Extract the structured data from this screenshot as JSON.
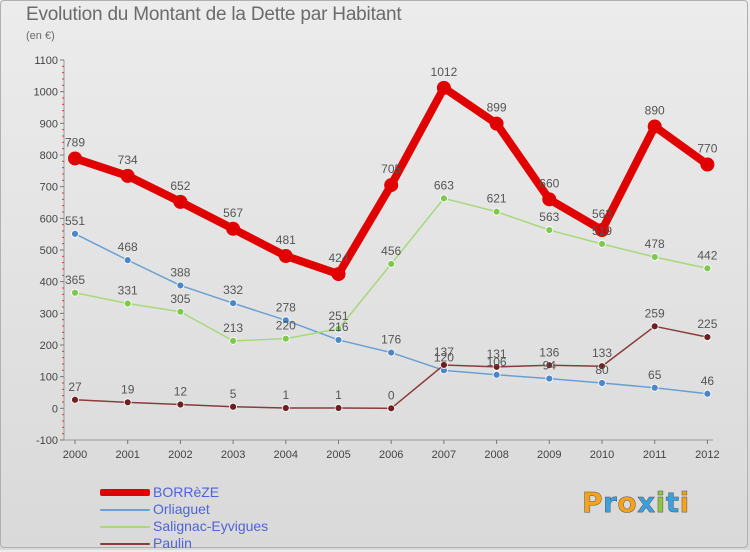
{
  "title": "Evolution du Montant de la Dette par Habitant",
  "subtitle": "(en €)",
  "logo": {
    "text": "Proxiti",
    "letters": [
      {
        "ch": "P",
        "color": "#f7a21b"
      },
      {
        "ch": "r",
        "color": "#3aa0e0"
      },
      {
        "ch": "o",
        "color": "#f7a21b"
      },
      {
        "ch": "x",
        "color": "#3aa0e0"
      },
      {
        "ch": "i",
        "color": "#8ec63f"
      },
      {
        "ch": "t",
        "color": "#3aa0e0"
      },
      {
        "ch": "i",
        "color": "#f7a21b"
      }
    ]
  },
  "chart_data": {
    "type": "line",
    "title": "Evolution du Montant de la Dette par Habitant",
    "subtitle": "(en €)",
    "x": [
      "2000",
      "2001",
      "2002",
      "2003",
      "2004",
      "2005",
      "2006",
      "2007",
      "2008",
      "2009",
      "2010",
      "2011",
      "2012"
    ],
    "y_ticks": [
      -100,
      0,
      100,
      200,
      300,
      400,
      500,
      600,
      700,
      800,
      900,
      1000,
      1100
    ],
    "ylim": [
      -100,
      1100
    ],
    "grid": false,
    "legend_position": "bottom-left",
    "series": [
      {
        "name": "BORRèZE",
        "color": "#e00000",
        "marker_color": "#e00000",
        "width": 8,
        "marker_r": 7,
        "values": [
          789,
          734,
          652,
          567,
          481,
          424,
          705,
          1012,
          899,
          660,
          563,
          890,
          770
        ],
        "labels": [
          "789",
          "734",
          "652",
          "567",
          "481",
          "424",
          "705",
          "1012",
          "899",
          "660",
          "563",
          "890",
          "770"
        ]
      },
      {
        "name": "Orliaguet",
        "color": "#6a9fd4",
        "marker_color": "#4a86c8",
        "width": 1.5,
        "marker_r": 3.5,
        "values": [
          551,
          468,
          388,
          332,
          278,
          216,
          176,
          120,
          106,
          94,
          80,
          65,
          46
        ],
        "labels": [
          "551",
          "468",
          "388",
          "332",
          "278",
          "216",
          "176",
          "120",
          "106",
          "94",
          "80",
          "65",
          "46"
        ]
      },
      {
        "name": "Salignac-Eyvigues",
        "color": "#a6d97a",
        "marker_color": "#7ec850",
        "width": 1.5,
        "marker_r": 3.5,
        "values": [
          365,
          331,
          305,
          213,
          220,
          251,
          456,
          663,
          621,
          563,
          519,
          478,
          442
        ],
        "labels": [
          "365",
          "331",
          "305",
          "213",
          "220",
          "251",
          "456",
          "663",
          "621",
          "563",
          "519",
          "478",
          "442"
        ]
      },
      {
        "name": "Paulin",
        "color": "#8a3b3b",
        "marker_color": "#6e1f1f",
        "width": 1.5,
        "marker_r": 3.5,
        "values": [
          27,
          19,
          12,
          5,
          1,
          1,
          0,
          137,
          131,
          136,
          133,
          259,
          225
        ],
        "labels": [
          "27",
          "19",
          "12",
          "5",
          "1",
          "1",
          "0",
          "137",
          "131",
          "136",
          "133",
          "259",
          "225"
        ]
      }
    ]
  }
}
